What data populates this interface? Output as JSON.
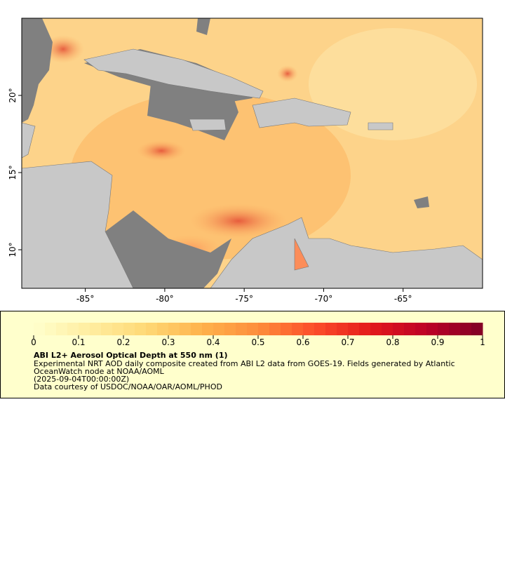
{
  "map": {
    "xlim": [
      -89,
      -60
    ],
    "ylim": [
      7.5,
      25
    ],
    "xticks": [
      {
        "value": -85,
        "label": "-85°"
      },
      {
        "value": -80,
        "label": "-80°"
      },
      {
        "value": -75,
        "label": "-75°"
      },
      {
        "value": -70,
        "label": "-70°"
      },
      {
        "value": -65,
        "label": "-65°"
      }
    ],
    "yticks": [
      {
        "value": 10,
        "label": "10°"
      },
      {
        "value": 15,
        "label": "15°"
      },
      {
        "value": 20,
        "label": "20°"
      }
    ],
    "land_color": "#c8c8c8",
    "nodata_color": "#808080"
  },
  "colorbar": {
    "range": [
      0,
      1
    ],
    "ticks": [
      0,
      0.1,
      0.2,
      0.3,
      0.4,
      0.5,
      0.6,
      0.7,
      0.8,
      0.9,
      1
    ],
    "colors": [
      "#ffffcc",
      "#ffeda0",
      "#fed976",
      "#feb24c",
      "#fd8d3c",
      "#fc4e2a",
      "#e31a1c",
      "#bd0026",
      "#800026"
    ]
  },
  "legend": {
    "title": "ABI L2+ Aerosol Optical Depth at 550 nm (1)",
    "lines": [
      "Experimental NRT AOD daily composite created from ABI L2 data from GOES-19. Fields generated by Atlantic",
      "OceanWatch node at NOAA/AOML",
      "(2025-09-04T00:00:00Z)",
      "Data courtesy of USDOC/NOAA/OAR/AOML/PHOD"
    ]
  }
}
